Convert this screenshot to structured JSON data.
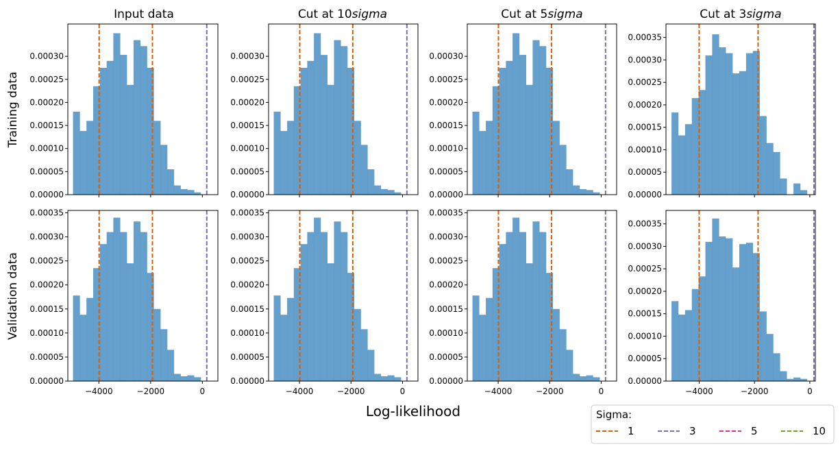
{
  "figure": {
    "xlabel": "Log-likelihood",
    "row_labels": [
      "Training data",
      "Validation data"
    ],
    "column_titles": [
      {
        "main": "Input data",
        "italic": ""
      },
      {
        "main": "Cut at 10",
        "italic": "sigma"
      },
      {
        "main": "Cut at 5",
        "italic": "sigma"
      },
      {
        "main": "Cut at 3",
        "italic": "sigma"
      }
    ]
  },
  "legend": {
    "title": "Sigma:",
    "entries": [
      {
        "label": "1",
        "color": "#d95f02"
      },
      {
        "label": "3",
        "color": "#7570b3"
      },
      {
        "label": "5",
        "color": "#e7298a"
      },
      {
        "label": "10",
        "color": "#66a61e"
      }
    ]
  },
  "colors": {
    "bar": "#4a8fc4",
    "bar_opacity": 0.85
  },
  "chart_data": [
    {
      "type": "bar",
      "row": "Training data",
      "column": "Input data",
      "xlim": [
        -5200,
        600
      ],
      "ylim": [
        0,
        0.00037
      ],
      "x_ticks": [
        -4000,
        -2000,
        0
      ],
      "x_tick_labels": [
        "",
        "",
        ""
      ],
      "y_ticks": [
        0,
        5e-05,
        0.0001,
        0.00015,
        0.0002,
        0.00025,
        0.0003
      ],
      "y_tick_labels": [
        "0.00000",
        "0.00005",
        "0.00010",
        "0.00015",
        "0.00020",
        "0.00025",
        "0.00030"
      ],
      "bins_start": -5000,
      "bin_width": 260,
      "values": [
        0.00018,
        0.000138,
        0.00016,
        0.000235,
        0.000275,
        0.00029,
        0.00035,
        0.000303,
        0.000238,
        0.000335,
        0.000322,
        0.000275,
        0.00016,
        0.000108,
        5.5e-05,
        2e-05,
        1.2e-05,
        1e-05,
        5e-06
      ],
      "vlines": [
        {
          "sigma": "1",
          "x": -3990
        },
        {
          "sigma": "1",
          "x": -1930
        },
        {
          "sigma": "3",
          "x": 170
        }
      ]
    },
    {
      "type": "bar",
      "row": "Training data",
      "column": "Cut at 10sigma",
      "xlim": [
        -5200,
        600
      ],
      "ylim": [
        0,
        0.00037
      ],
      "x_ticks": [
        -4000,
        -2000,
        0
      ],
      "x_tick_labels": [
        "",
        "",
        ""
      ],
      "y_ticks": [
        0,
        5e-05,
        0.0001,
        0.00015,
        0.0002,
        0.00025,
        0.0003
      ],
      "y_tick_labels": [
        "0.00000",
        "0.00005",
        "0.00010",
        "0.00015",
        "0.00020",
        "0.00025",
        "0.00030"
      ],
      "bins_start": -5000,
      "bin_width": 260,
      "values": [
        0.00018,
        0.000138,
        0.00016,
        0.000235,
        0.000275,
        0.00029,
        0.00035,
        0.000303,
        0.000238,
        0.000335,
        0.000322,
        0.000275,
        0.00016,
        0.000108,
        5.5e-05,
        2e-05,
        1.2e-05,
        1e-05,
        5e-06
      ],
      "vlines": [
        {
          "sigma": "1",
          "x": -3990
        },
        {
          "sigma": "1",
          "x": -1930
        },
        {
          "sigma": "3",
          "x": 170
        }
      ]
    },
    {
      "type": "bar",
      "row": "Training data",
      "column": "Cut at 5sigma",
      "xlim": [
        -5200,
        600
      ],
      "ylim": [
        0,
        0.00037
      ],
      "x_ticks": [
        -4000,
        -2000,
        0
      ],
      "x_tick_labels": [
        "",
        "",
        ""
      ],
      "y_ticks": [
        0,
        5e-05,
        0.0001,
        0.00015,
        0.0002,
        0.00025,
        0.0003
      ],
      "y_tick_labels": [
        "0.00000",
        "0.00005",
        "0.00010",
        "0.00015",
        "0.00020",
        "0.00025",
        "0.00030"
      ],
      "bins_start": -5000,
      "bin_width": 260,
      "values": [
        0.00018,
        0.000138,
        0.00016,
        0.000235,
        0.000275,
        0.00029,
        0.00035,
        0.000303,
        0.000238,
        0.000335,
        0.000322,
        0.000275,
        0.00016,
        0.000108,
        5.5e-05,
        2e-05,
        1.2e-05,
        1e-05,
        5e-06
      ],
      "vlines": [
        {
          "sigma": "1",
          "x": -3990
        },
        {
          "sigma": "1",
          "x": -1930
        },
        {
          "sigma": "3",
          "x": 170
        }
      ]
    },
    {
      "type": "bar",
      "row": "Training data",
      "column": "Cut at 3sigma",
      "xlim": [
        -5200,
        200
      ],
      "ylim": [
        0,
        0.00038
      ],
      "x_ticks": [
        -4000,
        -2000,
        0
      ],
      "x_tick_labels": [
        "",
        "",
        ""
      ],
      "y_ticks": [
        0,
        5e-05,
        0.0001,
        0.00015,
        0.0002,
        0.00025,
        0.0003,
        0.00035
      ],
      "y_tick_labels": [
        "0.00000",
        "0.00005",
        "0.00010",
        "0.00015",
        "0.00020",
        "0.00025",
        "0.00030",
        "0.00035"
      ],
      "bins_start": -5000,
      "bin_width": 245,
      "values": [
        0.000183,
        0.000132,
        0.000157,
        0.000215,
        0.000233,
        0.00031,
        0.000357,
        0.000328,
        0.000315,
        0.00027,
        0.000275,
        0.000315,
        0.00032,
        0.000175,
        0.000115,
        9.5e-05,
        3.6e-05,
        0,
        2.5e-05,
        1e-05
      ],
      "vlines": [
        {
          "sigma": "1",
          "x": -4000
        },
        {
          "sigma": "1",
          "x": -1870
        },
        {
          "sigma": "3",
          "x": 150
        }
      ]
    },
    {
      "type": "bar",
      "row": "Validation data",
      "column": "Input data",
      "xlim": [
        -5200,
        600
      ],
      "ylim": [
        0,
        0.000355
      ],
      "x_ticks": [
        -4000,
        -2000,
        0
      ],
      "x_tick_labels": [
        "−4000",
        "−2000",
        "0"
      ],
      "y_ticks": [
        0,
        5e-05,
        0.0001,
        0.00015,
        0.0002,
        0.00025,
        0.0003,
        0.00035
      ],
      "y_tick_labels": [
        "0.00000",
        "0.00005",
        "0.00010",
        "0.00015",
        "0.00020",
        "0.00025",
        "0.00030",
        "0.00035"
      ],
      "bins_start": -5000,
      "bin_width": 260,
      "values": [
        0.000178,
        0.000138,
        0.000173,
        0.000235,
        0.000285,
        0.00031,
        0.00034,
        0.00031,
        0.000245,
        0.000332,
        0.00031,
        0.000225,
        0.00015,
        0.000108,
        6.5e-05,
        1.5e-05,
        1e-05,
        1.2e-05,
        8e-06
      ],
      "vlines": [
        {
          "sigma": "1",
          "x": -3990
        },
        {
          "sigma": "1",
          "x": -1930
        },
        {
          "sigma": "3",
          "x": 170
        }
      ]
    },
    {
      "type": "bar",
      "row": "Validation data",
      "column": "Cut at 10sigma",
      "xlim": [
        -5200,
        600
      ],
      "ylim": [
        0,
        0.000355
      ],
      "x_ticks": [
        -4000,
        -2000,
        0
      ],
      "x_tick_labels": [
        "−4000",
        "−2000",
        "0"
      ],
      "y_ticks": [
        0,
        5e-05,
        0.0001,
        0.00015,
        0.0002,
        0.00025,
        0.0003,
        0.00035
      ],
      "y_tick_labels": [
        "0.00000",
        "0.00005",
        "0.00010",
        "0.00015",
        "0.00020",
        "0.00025",
        "0.00030",
        "0.00035"
      ],
      "bins_start": -5000,
      "bin_width": 260,
      "values": [
        0.000178,
        0.000138,
        0.000173,
        0.000235,
        0.000285,
        0.00031,
        0.00034,
        0.00031,
        0.000245,
        0.000332,
        0.00031,
        0.000225,
        0.00015,
        0.000108,
        6.5e-05,
        1.5e-05,
        1e-05,
        1.2e-05,
        8e-06
      ],
      "vlines": [
        {
          "sigma": "1",
          "x": -3990
        },
        {
          "sigma": "1",
          "x": -1930
        },
        {
          "sigma": "3",
          "x": 170
        }
      ]
    },
    {
      "type": "bar",
      "row": "Validation data",
      "column": "Cut at 5sigma",
      "xlim": [
        -5200,
        600
      ],
      "ylim": [
        0,
        0.000355
      ],
      "x_ticks": [
        -4000,
        -2000,
        0
      ],
      "x_tick_labels": [
        "−4000",
        "−2000",
        "0"
      ],
      "y_ticks": [
        0,
        5e-05,
        0.0001,
        0.00015,
        0.0002,
        0.00025,
        0.0003,
        0.00035
      ],
      "y_tick_labels": [
        "0.00000",
        "0.00005",
        "0.00010",
        "0.00015",
        "0.00020",
        "0.00025",
        "0.00030",
        "0.00035"
      ],
      "bins_start": -5000,
      "bin_width": 260,
      "values": [
        0.000178,
        0.000138,
        0.000173,
        0.000235,
        0.000285,
        0.00031,
        0.00034,
        0.00031,
        0.000245,
        0.000332,
        0.00031,
        0.000225,
        0.00015,
        0.000108,
        6.5e-05,
        1.5e-05,
        1e-05,
        1.2e-05,
        8e-06
      ],
      "vlines": [
        {
          "sigma": "1",
          "x": -3990
        },
        {
          "sigma": "1",
          "x": -1930
        },
        {
          "sigma": "3",
          "x": 170
        }
      ]
    },
    {
      "type": "bar",
      "row": "Validation data",
      "column": "Cut at 3sigma",
      "xlim": [
        -5200,
        200
      ],
      "ylim": [
        0,
        0.00038
      ],
      "x_ticks": [
        -4000,
        -2000,
        0
      ],
      "x_tick_labels": [
        "−4000",
        "−2000",
        "0"
      ],
      "y_ticks": [
        0,
        5e-05,
        0.0001,
        0.00015,
        0.0002,
        0.00025,
        0.0003,
        0.00035
      ],
      "y_tick_labels": [
        "0.00000",
        "0.00005",
        "0.00010",
        "0.00015",
        "0.00020",
        "0.00025",
        "0.00030",
        "0.00035"
      ],
      "bins_start": -5000,
      "bin_width": 245,
      "values": [
        0.000178,
        0.000148,
        0.000158,
        0.000205,
        0.000233,
        0.00031,
        0.000362,
        0.000322,
        0.000318,
        0.000253,
        0.000305,
        0.000308,
        0.000285,
        0.000155,
        0.000105,
        6.2e-05,
        2.2e-05,
        5e-06,
        8e-06,
        5e-06
      ],
      "vlines": [
        {
          "sigma": "1",
          "x": -4000
        },
        {
          "sigma": "1",
          "x": -1870
        },
        {
          "sigma": "3",
          "x": 150
        }
      ]
    }
  ]
}
